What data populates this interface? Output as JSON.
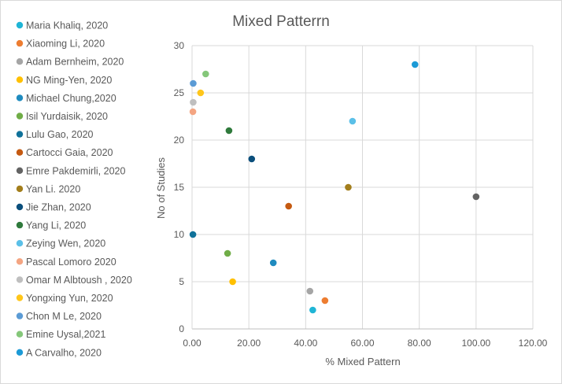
{
  "chart_data": {
    "type": "scatter",
    "title": "Mixed Patterrn",
    "xlabel": "% Mixed Pattern",
    "ylabel": "No of Studies",
    "xlim": [
      0,
      120
    ],
    "ylim": [
      0,
      30
    ],
    "x_ticks": [
      0,
      20,
      40,
      60,
      80,
      100,
      120
    ],
    "x_tick_labels": [
      "0.00",
      "20.00",
      "40.00",
      "60.00",
      "80.00",
      "100.00",
      "120.00"
    ],
    "y_ticks": [
      0,
      5,
      10,
      15,
      20,
      25,
      30
    ],
    "y_tick_labels": [
      "0",
      "5",
      "10",
      "15",
      "20",
      "25",
      "30"
    ],
    "grid": true,
    "legend_position": "left",
    "series": [
      {
        "name": "Maria Khaliq, 2020",
        "color": "#1fb5d6",
        "x": 42.5,
        "y": 2
      },
      {
        "name": "Xiaoming Li, 2020",
        "color": "#ed7d31",
        "x": 46.8,
        "y": 3
      },
      {
        "name": "Adam Bernheim, 2020",
        "color": "#a5a5a5",
        "x": 41.5,
        "y": 4
      },
      {
        "name": "NG Ming-Yen, 2020",
        "color": "#ffc000",
        "x": 14.3,
        "y": 5
      },
      {
        "name": "Michael Chung,2020",
        "color": "#1f8bbf",
        "x": 28.6,
        "y": 7
      },
      {
        "name": "Isil Yurdaisik, 2020",
        "color": "#70ad47",
        "x": 12.5,
        "y": 8
      },
      {
        "name": "Lulu Gao, 2020",
        "color": "#10729a",
        "x": 0.3,
        "y": 10
      },
      {
        "name": "Cartocci Gaia, 2020",
        "color": "#c55a11",
        "x": 34.0,
        "y": 13
      },
      {
        "name": "Emre Pakdemirli, 2020",
        "color": "#636363",
        "x": 100.0,
        "y": 14
      },
      {
        "name": "Yan Li. 2020",
        "color": "#a37e1c",
        "x": 55.0,
        "y": 15
      },
      {
        "name": "Jie Zhan, 2020",
        "color": "#0b4f7c",
        "x": 21.0,
        "y": 18
      },
      {
        "name": "Yang Li, 2020",
        "color": "#2f7a3c",
        "x": 13.0,
        "y": 21
      },
      {
        "name": "Zeying Wen, 2020",
        "color": "#5bc0e8",
        "x": 56.5,
        "y": 22
      },
      {
        "name": "Pascal Lomoro 2020",
        "color": "#f4a582",
        "x": 0.3,
        "y": 23
      },
      {
        "name": "Omar M Albtoush , 2020",
        "color": "#bfbfbf",
        "x": 0.4,
        "y": 24
      },
      {
        "name": "Yongxing Yun,  2020",
        "color": "#ffc61a",
        "x": 3.0,
        "y": 25
      },
      {
        "name": "Chon M Le, 2020",
        "color": "#5b9bd5",
        "x": 0.4,
        "y": 26
      },
      {
        "name": "Emine Uysal,2021",
        "color": "#85c77a",
        "x": 4.8,
        "y": 27
      },
      {
        "name": "A Carvalho, 2020",
        "color": "#1c9ad6",
        "x": 78.5,
        "y": 28
      }
    ]
  }
}
